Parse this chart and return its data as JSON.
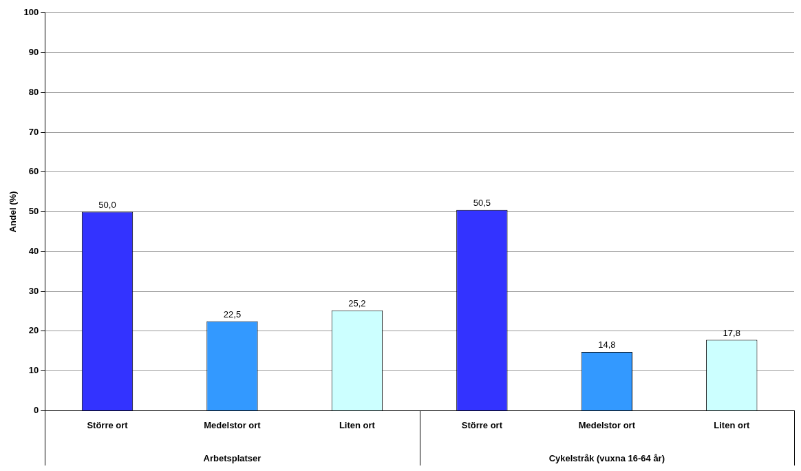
{
  "chart_data": {
    "type": "bar",
    "ylabel": "Andel (%)",
    "categories": [
      "Större ort",
      "Medelstor ort",
      "Liten ort",
      "Större ort",
      "Medelstor ort",
      "Liten ort"
    ],
    "values": [
      50.0,
      22.5,
      25.2,
      50.5,
      14.8,
      17.8
    ],
    "colors": [
      "#3333ff",
      "#3399ff",
      "#ccffff",
      "#3333ff",
      "#3399ff",
      "#ccffff"
    ],
    "value_labels": [
      "50,0",
      "22,5",
      "25,2",
      "50,5",
      "14,8",
      "17,8"
    ],
    "annotations": [
      "Arbetsplatser",
      "Cykelstråk (vuxna 16-64 år)"
    ],
    "ylim": [
      0,
      100
    ],
    "yticks": [
      0,
      10,
      20,
      30,
      40,
      50,
      60,
      70,
      80,
      90,
      100
    ],
    "grid": "y"
  }
}
